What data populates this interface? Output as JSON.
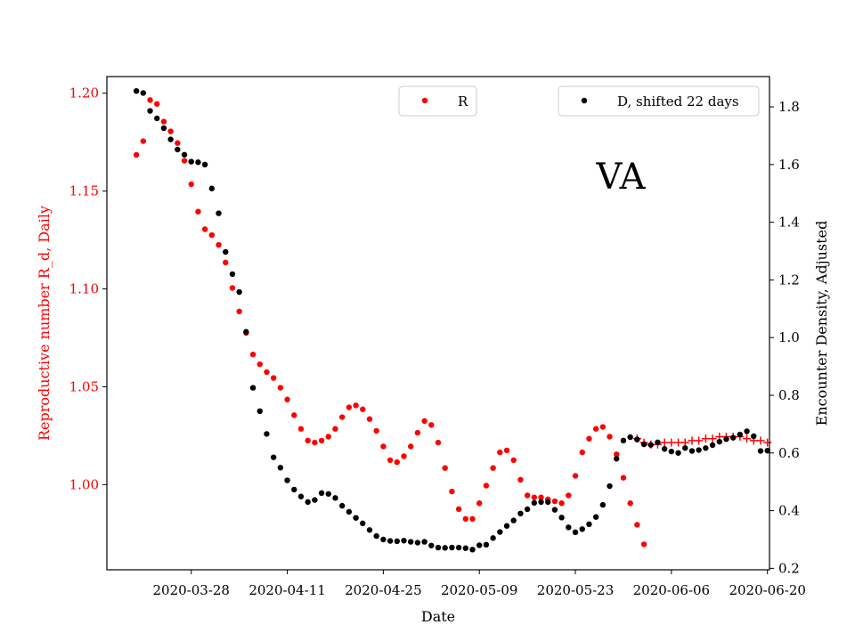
{
  "chart_data": {
    "type": "scatter",
    "title": "VA",
    "xlabel": "Date",
    "ylabel_left": "Reproductive number R_d, Daily",
    "ylabel_right": "Encounter Density, Adjusted",
    "x_tick_labels": [
      "2020-03-28",
      "2020-04-11",
      "2020-04-25",
      "2020-05-09",
      "2020-05-23",
      "2020-06-06",
      "2020-06-20"
    ],
    "x_tick_day_offsets": [
      0,
      14,
      28,
      42,
      56,
      70,
      84
    ],
    "x_axis_day_range": [
      -12.3,
      84.3
    ],
    "ylim_left": [
      0.9565,
      1.2085
    ],
    "yticks_left": [
      "1.00",
      "1.05",
      "1.10",
      "1.15",
      "1.20"
    ],
    "yticks_left_values": [
      1.0,
      1.05,
      1.1,
      1.15,
      1.2
    ],
    "ylim_right": [
      0.195,
      1.905
    ],
    "yticks_right": [
      "0.2",
      "0.4",
      "0.6",
      "0.8",
      "1.0",
      "1.2",
      "1.4",
      "1.6",
      "1.8"
    ],
    "yticks_right_values": [
      0.2,
      0.4,
      0.6,
      0.8,
      1.0,
      1.2,
      1.4,
      1.6,
      1.8
    ],
    "colors": {
      "R": "#ff0000",
      "D": "#000000",
      "R_extrapolated": "#ff0000",
      "left_axis": "#ff0000"
    },
    "legend_R": {
      "label": "R",
      "position": "top-center"
    },
    "legend_D": {
      "label": "D, shifted 22 days",
      "position": "top-right"
    },
    "series": [
      {
        "name": "R",
        "axis": "left",
        "marker": "dot",
        "start_day": -8,
        "values": [
          1.1685,
          1.1755,
          1.1965,
          1.1945,
          1.1855,
          1.1805,
          1.1745,
          1.1655,
          1.1535,
          1.1395,
          1.1305,
          1.1275,
          1.1225,
          1.1135,
          1.1005,
          1.0885,
          1.0775,
          1.0665,
          1.0615,
          1.0575,
          1.0545,
          1.0495,
          1.0435,
          1.0355,
          1.0285,
          1.0225,
          1.0215,
          1.0225,
          1.0245,
          1.0285,
          1.0345,
          1.0395,
          1.0405,
          1.0385,
          1.0335,
          1.0275,
          1.0195,
          1.0125,
          1.0115,
          1.0145,
          1.0195,
          1.0265,
          1.0325,
          1.0305,
          1.0215,
          1.0085,
          0.9965,
          0.9875,
          0.9825,
          0.9825,
          0.9905,
          0.9995,
          1.0085,
          1.0165,
          1.0175,
          1.0125,
          1.0025,
          0.9945,
          0.9935,
          0.9935,
          0.9925,
          0.9915,
          0.9905,
          0.9945,
          1.0045,
          1.0165,
          1.0235,
          1.0285,
          1.0295,
          1.0245,
          1.0155,
          1.0035,
          0.9905,
          0.9795,
          0.9695
        ]
      },
      {
        "name": "R_extrapolated",
        "axis": "left",
        "marker": "plus",
        "start_day": 65,
        "values": [
          1.0235,
          1.0215,
          1.0205,
          1.0205,
          1.0215,
          1.0215,
          1.0215,
          1.0215,
          1.0225,
          1.0225,
          1.0235,
          1.0235,
          1.0245,
          1.0245,
          1.0245,
          1.0245,
          1.0235,
          1.0225,
          1.0225,
          1.0215
        ]
      },
      {
        "name": "D",
        "axis": "right",
        "marker": "dot",
        "start_day": -8,
        "values": [
          1.855,
          1.848,
          1.786,
          1.76,
          1.726,
          1.687,
          1.652,
          1.634,
          1.61,
          1.608,
          1.6,
          1.517,
          1.431,
          1.297,
          1.22,
          1.158,
          1.02,
          0.826,
          0.745,
          0.666,
          0.585,
          0.549,
          0.505,
          0.473,
          0.449,
          0.43,
          0.437,
          0.461,
          0.458,
          0.444,
          0.417,
          0.396,
          0.375,
          0.356,
          0.333,
          0.312,
          0.3,
          0.295,
          0.294,
          0.296,
          0.292,
          0.289,
          0.292,
          0.279,
          0.272,
          0.271,
          0.272,
          0.272,
          0.27,
          0.265,
          0.28,
          0.282,
          0.305,
          0.326,
          0.347,
          0.366,
          0.39,
          0.405,
          0.427,
          0.43,
          0.43,
          0.403,
          0.376,
          0.342,
          0.325,
          0.336,
          0.353,
          0.378,
          0.42,
          0.485,
          0.58,
          0.643,
          0.655,
          0.647,
          0.63,
          0.628,
          0.637,
          0.614,
          0.605,
          0.6,
          0.617,
          0.607,
          0.61,
          0.617,
          0.627,
          0.639,
          0.648,
          0.653,
          0.664,
          0.675,
          0.658,
          0.607,
          0.608
        ]
      }
    ]
  }
}
